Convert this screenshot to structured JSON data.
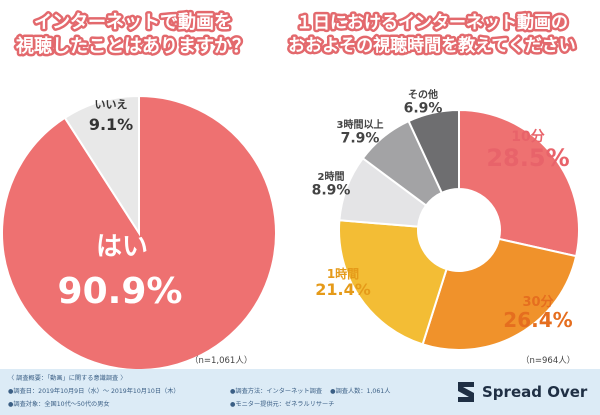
{
  "titles": {
    "left_line1": "インターネットで動画を",
    "left_line2": "視聴したことはありますか？",
    "right_line1": "１日におけるインターネット動画の",
    "right_line2": "おおよその視聴時間を教えてください"
  },
  "notes": {
    "left_n": "（n=1,061人）",
    "right_n": "（n=964人）"
  },
  "survey": {
    "line1": "〈 調査概要：「動画」に関する意識調査 〉",
    "line2": "●調査日：2019年10月9日（水）～ 2019年10月10日（木）",
    "line3": "●調査対象：全国10代～50代の男女",
    "line4": "●調査方法：インターネット調査　 ●調査人数：1,061人",
    "line5": "●モニター提供元：ゼネラルリサーチ"
  },
  "brand": {
    "name": "Spread Over"
  },
  "colors": {
    "title_fill": "#ffffff",
    "title_stroke": "#e3696d",
    "yes": "#ee7171",
    "no": "#e8e8e8",
    "label_dark": "#333333"
  },
  "chart_data": [
    {
      "type": "pie",
      "title": "インターネットで動画を視聴したことはありますか？",
      "categories": [
        "はい",
        "いいえ"
      ],
      "values": [
        90.9,
        9.1
      ],
      "unit": "%",
      "n": "n=1,061人"
    },
    {
      "type": "pie",
      "title": "１日におけるインターネット動画のおおよその視聴時間を教えてください",
      "categories": [
        "10分",
        "30分",
        "1時間",
        "2時間",
        "3時間以上",
        "その他"
      ],
      "values": [
        28.5,
        26.4,
        21.4,
        8.9,
        7.9,
        6.9
      ],
      "unit": "%",
      "colors": [
        "#ee7171",
        "#f0922b",
        "#f3bd35",
        "#e4e4e6",
        "#a3a3a5",
        "#6e6e70"
      ],
      "n": "n=964人"
    }
  ]
}
